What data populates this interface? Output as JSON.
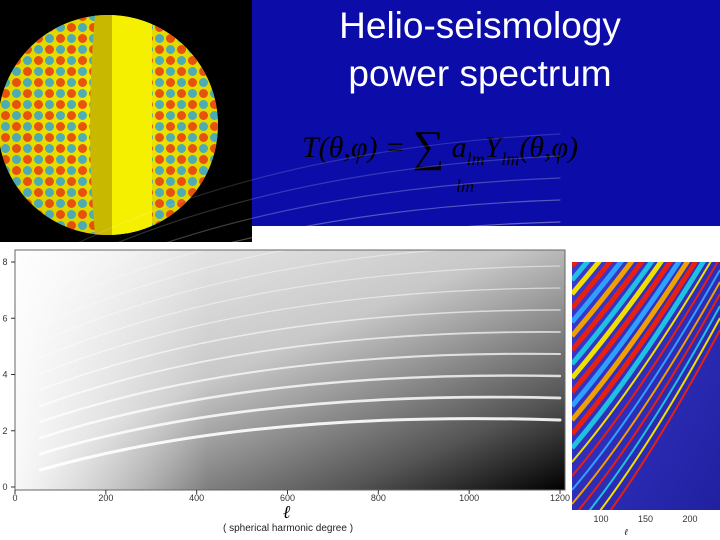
{
  "slide": {
    "title_lines": [
      "Helio-seismology",
      "power spectrum"
    ],
    "formula": {
      "lhs": "T(θ,φ) =",
      "sum": "∑",
      "sum_index": "lm",
      "coef": "a",
      "coef_sub": "lm",
      "fn": "Y",
      "fn_sub": "lm",
      "args": "(θ,φ)"
    },
    "spectrum": {
      "xticks": [
        0,
        200,
        400,
        600,
        800,
        1000,
        1200
      ],
      "yticks": [
        0,
        2,
        4,
        6,
        8
      ],
      "xlabel": "ℓ",
      "xlabel_note": "( spherical harmonic degree )"
    },
    "inset": {
      "xticks": [
        100,
        150,
        200
      ],
      "xlabel": "ℓ"
    }
  }
}
